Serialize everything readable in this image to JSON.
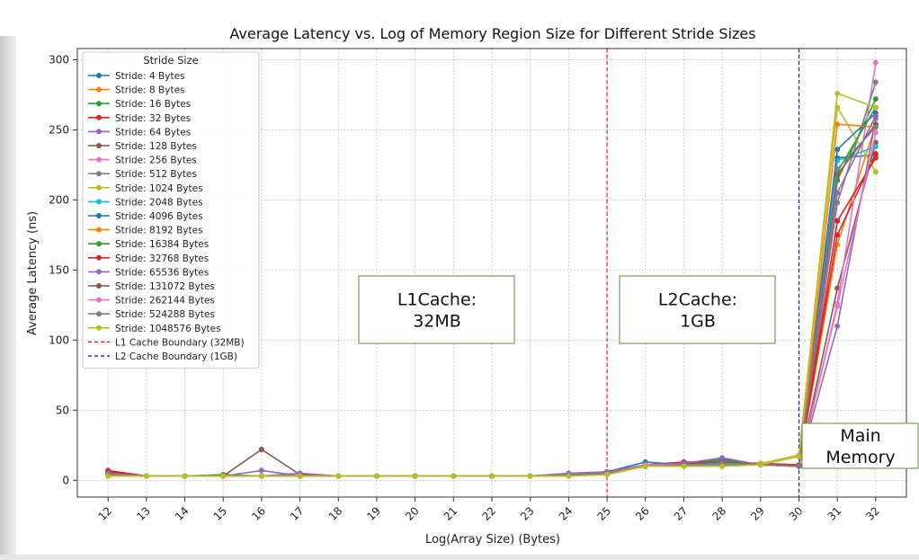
{
  "chart_data": {
    "type": "line",
    "title": "Average Latency vs. Log of Memory Region Size for Different Stride Sizes",
    "xlabel": "Log(Array Size) (Bytes)",
    "ylabel": "Average Latency (ns)",
    "xlim": [
      11.2,
      32.8
    ],
    "ylim": [
      -12,
      308
    ],
    "grid": true,
    "legend_title": "Stride Size",
    "legend_position": "top-left",
    "x": [
      12,
      13,
      14,
      15,
      16,
      17,
      18,
      19,
      20,
      21,
      22,
      23,
      24,
      25,
      26,
      27,
      28,
      29,
      30,
      31,
      32
    ],
    "xticks": [
      "12",
      "13",
      "14",
      "15",
      "16",
      "17",
      "18",
      "19",
      "20",
      "21",
      "22",
      "23",
      "24",
      "25",
      "26",
      "27",
      "28",
      "29",
      "30",
      "31",
      "32"
    ],
    "yticks": [
      "0",
      "50",
      "100",
      "150",
      "200",
      "250",
      "300"
    ],
    "series": [
      {
        "name": "Stride: 4 Bytes",
        "color": "#1f77b4",
        "values": [
          4,
          3,
          3,
          3,
          3,
          3,
          3,
          3,
          3,
          3,
          3,
          3,
          4,
          5,
          10,
          10,
          12,
          11,
          10,
          230,
          232
        ]
      },
      {
        "name": "Stride: 8 Bytes",
        "color": "#ff7f0e",
        "values": [
          3,
          3,
          3,
          3,
          3,
          3,
          3,
          3,
          3,
          3,
          3,
          3,
          3,
          5,
          10,
          11,
          11,
          11,
          10,
          168,
          254
        ]
      },
      {
        "name": "Stride: 16 Bytes",
        "color": "#2ca02c",
        "values": [
          4,
          3,
          3,
          4,
          3,
          3,
          3,
          3,
          3,
          3,
          3,
          3,
          3,
          5,
          11,
          11,
          13,
          11,
          10,
          214,
          272
        ]
      },
      {
        "name": "Stride: 32 Bytes",
        "color": "#d62728",
        "values": [
          7,
          3,
          3,
          3,
          3,
          3,
          3,
          3,
          3,
          3,
          3,
          3,
          4,
          6,
          11,
          13,
          13,
          12,
          11,
          175,
          233
        ]
      },
      {
        "name": "Stride: 64 Bytes",
        "color": "#9467bd",
        "values": [
          5,
          3,
          3,
          3,
          7,
          3,
          3,
          3,
          3,
          3,
          3,
          3,
          4,
          5,
          10,
          11,
          14,
          11,
          10,
          110,
          258
        ]
      },
      {
        "name": "Stride: 128 Bytes",
        "color": "#8c564b",
        "values": [
          4,
          3,
          3,
          3,
          22,
          4,
          3,
          3,
          3,
          3,
          3,
          3,
          4,
          5,
          10,
          11,
          12,
          11,
          10,
          137,
          241
        ]
      },
      {
        "name": "Stride: 256 Bytes",
        "color": "#e377c2",
        "values": [
          4,
          3,
          3,
          3,
          3,
          3,
          3,
          3,
          3,
          3,
          3,
          3,
          4,
          5,
          10,
          11,
          11,
          11,
          10,
          126,
          298
        ]
      },
      {
        "name": "Stride: 512 Bytes",
        "color": "#7f7f7f",
        "values": [
          4,
          3,
          3,
          3,
          3,
          3,
          3,
          3,
          3,
          3,
          3,
          3,
          4,
          5,
          10,
          11,
          11,
          11,
          10,
          198,
          284
        ]
      },
      {
        "name": "Stride: 1024 Bytes",
        "color": "#bcbd22",
        "values": [
          3,
          3,
          3,
          3,
          3,
          3,
          3,
          3,
          3,
          3,
          3,
          3,
          3,
          4,
          10,
          10,
          10,
          12,
          18,
          266,
          220
        ]
      },
      {
        "name": "Stride: 2048 Bytes",
        "color": "#17becf",
        "values": [
          4,
          3,
          3,
          3,
          3,
          3,
          3,
          3,
          3,
          3,
          3,
          3,
          4,
          5,
          10,
          11,
          11,
          11,
          10,
          228,
          238
        ]
      },
      {
        "name": "Stride: 4096 Bytes",
        "color": "#1f77b4",
        "values": [
          4,
          3,
          3,
          3,
          3,
          3,
          3,
          3,
          3,
          3,
          3,
          3,
          4,
          6,
          13,
          11,
          15,
          11,
          10,
          236,
          262
        ]
      },
      {
        "name": "Stride: 8192 Bytes",
        "color": "#ff7f0e",
        "values": [
          4,
          3,
          3,
          3,
          3,
          3,
          3,
          3,
          3,
          3,
          3,
          3,
          4,
          6,
          11,
          11,
          12,
          11,
          10,
          254,
          252
        ]
      },
      {
        "name": "Stride: 16384 Bytes",
        "color": "#2ca02c",
        "values": [
          4,
          3,
          3,
          3,
          3,
          3,
          3,
          3,
          3,
          3,
          3,
          3,
          4,
          5,
          11,
          11,
          15,
          11,
          10,
          220,
          266
        ]
      },
      {
        "name": "Stride: 32768 Bytes",
        "color": "#d62728",
        "values": [
          6,
          3,
          3,
          3,
          3,
          3,
          3,
          3,
          3,
          3,
          3,
          3,
          4,
          6,
          11,
          12,
          13,
          11,
          10,
          185,
          230
        ]
      },
      {
        "name": "Stride: 65536 Bytes",
        "color": "#9467bd",
        "values": [
          5,
          3,
          3,
          3,
          3,
          5,
          3,
          3,
          3,
          3,
          3,
          3,
          5,
          6,
          11,
          12,
          16,
          11,
          10,
          205,
          260
        ]
      },
      {
        "name": "Stride: 131072 Bytes",
        "color": "#8c564b",
        "values": [
          4,
          3,
          3,
          3,
          3,
          3,
          3,
          3,
          3,
          3,
          3,
          3,
          4,
          5,
          11,
          11,
          13,
          11,
          10,
          218,
          254
        ]
      },
      {
        "name": "Stride: 262144 Bytes",
        "color": "#e377c2",
        "values": [
          4,
          3,
          3,
          3,
          3,
          3,
          3,
          3,
          3,
          3,
          3,
          3,
          4,
          5,
          11,
          11,
          12,
          11,
          10,
          124,
          248
        ]
      },
      {
        "name": "Stride: 524288 Bytes",
        "color": "#7f7f7f",
        "values": [
          4,
          3,
          3,
          3,
          3,
          3,
          3,
          3,
          3,
          3,
          3,
          3,
          4,
          5,
          10,
          11,
          12,
          11,
          10,
          222,
          252
        ]
      },
      {
        "name": "Stride: 1048576 Bytes",
        "color": "#bcbd22",
        "values": [
          3,
          3,
          3,
          3,
          3,
          3,
          3,
          3,
          3,
          3,
          3,
          3,
          3,
          4,
          10,
          10,
          10,
          11,
          17,
          276,
          266
        ]
      }
    ],
    "vlines": [
      {
        "name": "L1 Cache Boundary (32MB)",
        "x": 25,
        "color": "#ff0000"
      },
      {
        "name": "L2 Cache Boundary (1GB)",
        "x": 30,
        "color": "#0000ff"
      }
    ],
    "annotations": [
      {
        "lines": [
          "L1Cache:",
          "32MB"
        ]
      },
      {
        "lines": [
          "L2Cache:",
          "1GB"
        ]
      },
      {
        "lines": [
          "Main",
          "Memory"
        ]
      }
    ]
  }
}
